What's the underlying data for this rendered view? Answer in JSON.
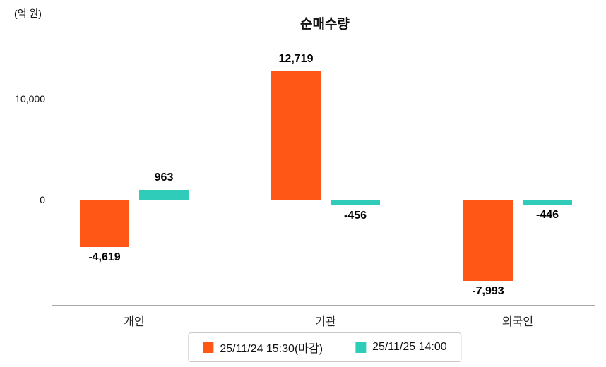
{
  "chart_data": {
    "type": "bar",
    "title": "순매수량",
    "unit_label": "(억 원)",
    "categories": [
      "개인",
      "기관",
      "외국인"
    ],
    "series": [
      {
        "key": "prev-close",
        "name": "25/11/24 15:30(마감)",
        "color": "#FF5716",
        "values": [
          -4619,
          12719,
          -7993
        ],
        "labels": [
          "-4,619",
          "12,719",
          "-7,993"
        ]
      },
      {
        "key": "intraday",
        "name": "25/11/25 14:00",
        "color": "#2FCDB9",
        "values": [
          963,
          -456,
          -446
        ],
        "labels": [
          "963",
          "-456",
          "-446"
        ]
      }
    ],
    "yticks": [
      {
        "value": 10000,
        "label": "10,000"
      },
      {
        "value": 0,
        "label": "0"
      }
    ],
    "ylim": [
      -10500,
      14500
    ],
    "grid": false,
    "zero_line": true,
    "legend_position": "bottom"
  }
}
